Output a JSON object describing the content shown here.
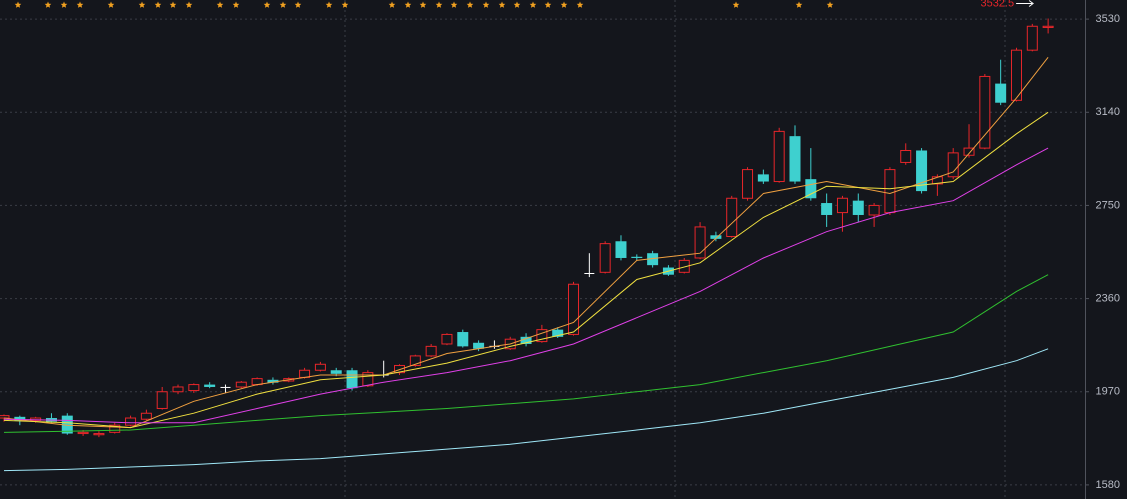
{
  "chart_data": {
    "type": "candlestick",
    "open": [
      1860,
      1865,
      1850,
      1860,
      1870,
      1795,
      1790,
      1800,
      1830,
      1855,
      1900,
      1970,
      1975,
      2000,
      1988,
      1990,
      2000,
      2020,
      2015,
      2030,
      2060,
      2060,
      2060,
      1995,
      2040,
      2050,
      2080,
      2120,
      2170,
      2220,
      2175,
      2160,
      2150,
      2200,
      2180,
      2230,
      2210,
      2465,
      2470,
      2600,
      2535,
      2550,
      2490,
      2470,
      2530,
      2625,
      2620,
      2780,
      2880,
      2850,
      3040,
      2860,
      2760,
      2720,
      2770,
      2710,
      2720,
      2930,
      2980,
      2840,
      2870,
      2960,
      2990,
      3260,
      3190,
      3400,
      3495
    ],
    "high": [
      1875,
      1870,
      1865,
      1880,
      1880,
      1810,
      1805,
      1840,
      1870,
      1895,
      1990,
      2000,
      2005,
      2010,
      2000,
      2015,
      2030,
      2030,
      2030,
      2070,
      2095,
      2070,
      2070,
      2060,
      2100,
      2085,
      2125,
      2170,
      2215,
      2230,
      2185,
      2185,
      2200,
      2215,
      2250,
      2240,
      2430,
      2550,
      2600,
      2625,
      2545,
      2560,
      2500,
      2530,
      2680,
      2640,
      2790,
      2910,
      2900,
      3075,
      3085,
      2990,
      2800,
      2790,
      2800,
      2760,
      2910,
      3010,
      2990,
      2880,
      2990,
      3090,
      3300,
      3360,
      3410,
      3510,
      3532.5
    ],
    "low": [
      1845,
      1830,
      1840,
      1840,
      1790,
      1785,
      1780,
      1795,
      1825,
      1850,
      1895,
      1960,
      1965,
      1985,
      1965,
      1985,
      1995,
      2000,
      2010,
      2025,
      2055,
      2035,
      1975,
      1990,
      2030,
      2040,
      2075,
      2115,
      2165,
      2155,
      2140,
      2150,
      2145,
      2160,
      2175,
      2195,
      2205,
      2450,
      2465,
      2520,
      2520,
      2490,
      2455,
      2465,
      2525,
      2600,
      2615,
      2770,
      2840,
      2845,
      2840,
      2770,
      2660,
      2640,
      2680,
      2660,
      2710,
      2920,
      2800,
      2790,
      2860,
      2950,
      2985,
      3170,
      3185,
      3395,
      3470
    ],
    "close": [
      1870,
      1850,
      1860,
      1845,
      1795,
      1800,
      1795,
      1830,
      1860,
      1880,
      1970,
      1990,
      2000,
      1990,
      1988,
      2010,
      2025,
      2008,
      2025,
      2060,
      2085,
      2045,
      1985,
      2050,
      2040,
      2080,
      2120,
      2160,
      2210,
      2160,
      2150,
      2160,
      2190,
      2170,
      2230,
      2200,
      2420,
      2465,
      2590,
      2530,
      2530,
      2500,
      2460,
      2520,
      2660,
      2610,
      2780,
      2900,
      2850,
      3060,
      2850,
      2780,
      2710,
      2780,
      2710,
      2750,
      2900,
      2980,
      2810,
      2870,
      2970,
      2990,
      3290,
      3180,
      3400,
      3500,
      3500
    ],
    "up_color": "#e8262a",
    "down_color": "#3ed0cf",
    "flat_color": "#ffffff",
    "lines": [
      {
        "color": "#f0a040",
        "x": [
          0,
          4,
          8,
          12,
          16,
          20,
          24,
          28,
          32,
          36,
          40,
          44,
          48,
          52,
          56,
          60,
          64,
          66
        ],
        "values": [
          1860,
          1830,
          1820,
          1930,
          2000,
          2040,
          2040,
          2130,
          2170,
          2260,
          2520,
          2550,
          2800,
          2850,
          2800,
          2890,
          3200,
          3370
        ]
      },
      {
        "color": "#f0e040",
        "x": [
          0,
          4,
          8,
          12,
          16,
          20,
          24,
          28,
          32,
          36,
          40,
          44,
          48,
          52,
          56,
          60,
          64,
          66
        ],
        "values": [
          1850,
          1840,
          1820,
          1880,
          1960,
          2020,
          2040,
          2090,
          2160,
          2220,
          2440,
          2510,
          2700,
          2830,
          2820,
          2850,
          3050,
          3140
        ]
      },
      {
        "color": "#e040e8",
        "x": [
          0,
          4,
          8,
          12,
          16,
          20,
          24,
          28,
          32,
          36,
          40,
          44,
          48,
          52,
          56,
          60,
          64,
          66
        ],
        "values": [
          1855,
          1850,
          1840,
          1840,
          1900,
          1960,
          2010,
          2050,
          2100,
          2170,
          2280,
          2390,
          2530,
          2640,
          2720,
          2770,
          2920,
          2990
        ]
      },
      {
        "color": "#30c030",
        "x": [
          0,
          4,
          8,
          12,
          16,
          20,
          24,
          28,
          32,
          36,
          40,
          44,
          48,
          52,
          56,
          60,
          64,
          66
        ],
        "values": [
          1800,
          1805,
          1810,
          1830,
          1850,
          1870,
          1885,
          1900,
          1920,
          1940,
          1970,
          2000,
          2050,
          2100,
          2160,
          2220,
          2390,
          2460
        ]
      },
      {
        "color": "#a0e8f8",
        "x": [
          0,
          4,
          8,
          12,
          16,
          20,
          24,
          28,
          32,
          36,
          40,
          44,
          48,
          52,
          56,
          60,
          64,
          66
        ],
        "values": [
          1640,
          1645,
          1655,
          1665,
          1680,
          1690,
          1710,
          1730,
          1750,
          1780,
          1810,
          1840,
          1880,
          1930,
          1980,
          2030,
          2100,
          2150
        ]
      }
    ],
    "ylim": [
      1521,
      3610
    ],
    "yticks": [
      1580,
      1970,
      2360,
      2750,
      3140,
      3530
    ],
    "grid": true,
    "high_annotation_index": 66
  }
}
